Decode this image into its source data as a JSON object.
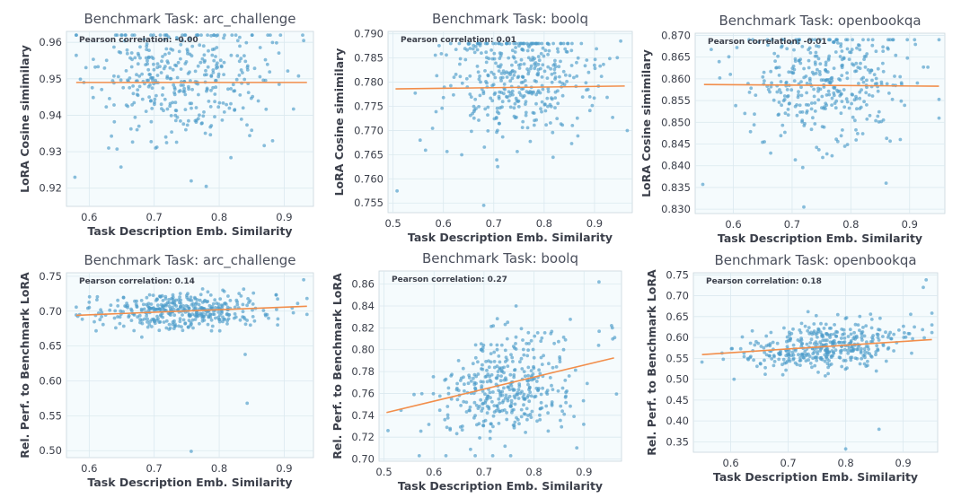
{
  "colors": {
    "point": "#4c9bc9",
    "fit_line": "#f28e4b",
    "panel_bg": "#f5fbfd",
    "grid": "#dbe9ef",
    "text": "#3b3f4a"
  },
  "chart_data": [
    {
      "type": "scatter",
      "title": "Benchmark Task: arc_challenge",
      "xlabel": "Task Description Emb. Similarity",
      "ylabel": "LoRA Cosine simimilary",
      "annotation": "Pearson correlation: -0.00",
      "xlim": [
        0.565,
        0.945
      ],
      "ylim": [
        0.915,
        0.963
      ],
      "xticks": [
        0.6,
        0.7,
        0.8,
        0.9
      ],
      "xtick_labels": [
        "0.6",
        "0.7",
        "0.8",
        "0.9"
      ],
      "yticks": [
        0.92,
        0.93,
        0.94,
        0.95,
        0.96
      ],
      "ytick_labels": [
        "0.92",
        "0.93",
        "0.94",
        "0.95",
        "0.96"
      ],
      "fit": {
        "x": [
          0.58,
          0.935
        ],
        "y": [
          0.949,
          0.949
        ]
      },
      "cloud": {
        "n": 380,
        "x_mean": 0.74,
        "x_sd": 0.065,
        "y_mean": 0.95,
        "y_sd": 0.0085,
        "seed": 11,
        "y_clip": [
          0.917,
          0.962
        ]
      },
      "points": [
        {
          "x": 0.578,
          "y": 0.923
        },
        {
          "x": 0.757,
          "y": 0.922
        },
        {
          "x": 0.78,
          "y": 0.9205
        },
        {
          "x": 0.63,
          "y": 0.931
        },
        {
          "x": 0.93,
          "y": 0.9605
        }
      ]
    },
    {
      "type": "scatter",
      "title": "Benchmark Task: boolq",
      "xlabel": "Task Description Emb. Similarity",
      "ylabel": "LoRA Cosine simimilary",
      "annotation": "Pearson correlation: 0.01",
      "xlim": [
        0.49,
        0.975
      ],
      "ylim": [
        0.753,
        0.7905
      ],
      "xticks": [
        0.5,
        0.6,
        0.7,
        0.8,
        0.9
      ],
      "xtick_labels": [
        "0.5",
        "0.6",
        "0.7",
        "0.8",
        "0.9"
      ],
      "yticks": [
        0.755,
        0.76,
        0.765,
        0.77,
        0.775,
        0.78,
        0.785,
        0.79
      ],
      "ytick_labels": [
        "0.755",
        "0.760",
        "0.765",
        "0.770",
        "0.775",
        "0.780",
        "0.785",
        "0.790"
      ],
      "fit": {
        "x": [
          0.505,
          0.96
        ],
        "y": [
          0.7786,
          0.7792
        ]
      },
      "cloud": {
        "n": 400,
        "x_mean": 0.745,
        "x_sd": 0.07,
        "y_mean": 0.7805,
        "y_sd": 0.0065,
        "seed": 23,
        "y_clip": [
          0.755,
          0.788
        ]
      },
      "points": [
        {
          "x": 0.508,
          "y": 0.7575
        },
        {
          "x": 0.952,
          "y": 0.7885
        },
        {
          "x": 0.68,
          "y": 0.7545
        },
        {
          "x": 0.6,
          "y": 0.7768
        },
        {
          "x": 0.9,
          "y": 0.7835
        }
      ]
    },
    {
      "type": "scatter",
      "title": "Benchmark Task: openbookqa",
      "xlabel": "Task Description Emb. Similarity",
      "ylabel": "LoRA Cosine simimilary",
      "annotation": "Pearson correlation: -0.01",
      "xlim": [
        0.535,
        0.96
      ],
      "ylim": [
        0.829,
        0.8705
      ],
      "xticks": [
        0.6,
        0.7,
        0.8,
        0.9
      ],
      "xtick_labels": [
        "0.6",
        "0.7",
        "0.8",
        "0.9"
      ],
      "yticks": [
        0.83,
        0.835,
        0.84,
        0.845,
        0.85,
        0.855,
        0.86,
        0.865,
        0.87
      ],
      "ytick_labels": [
        "0.830",
        "0.835",
        "0.840",
        "0.845",
        "0.850",
        "0.855",
        "0.860",
        "0.865",
        "0.870"
      ],
      "fit": {
        "x": [
          0.55,
          0.95
        ],
        "y": [
          0.8587,
          0.8583
        ]
      },
      "cloud": {
        "n": 380,
        "x_mean": 0.765,
        "x_sd": 0.07,
        "y_mean": 0.8595,
        "y_sd": 0.0072,
        "seed": 37,
        "y_clip": [
          0.831,
          0.869
        ]
      },
      "points": [
        {
          "x": 0.548,
          "y": 0.8357
        },
        {
          "x": 0.72,
          "y": 0.8305
        },
        {
          "x": 0.95,
          "y": 0.869
        },
        {
          "x": 0.86,
          "y": 0.836
        }
      ]
    },
    {
      "type": "scatter",
      "title": "Benchmark Task: arc_challenge",
      "xlabel": "Task Description Emb. Similarity",
      "ylabel": "Rel. Perf. to Benchmark LoRA",
      "annotation": "Pearson correlation: 0.14",
      "xlim": [
        0.565,
        0.945
      ],
      "ylim": [
        0.49,
        0.755
      ],
      "xticks": [
        0.6,
        0.7,
        0.8,
        0.9
      ],
      "xtick_labels": [
        "0.6",
        "0.7",
        "0.8",
        "0.9"
      ],
      "yticks": [
        0.5,
        0.55,
        0.6,
        0.65,
        0.7,
        0.75
      ],
      "ytick_labels": [
        "0.50",
        "0.55",
        "0.60",
        "0.65",
        "0.70",
        "0.75"
      ],
      "fit": {
        "x": [
          0.58,
          0.935
        ],
        "y": [
          0.694,
          0.707
        ]
      },
      "cloud": {
        "n": 400,
        "x_mean": 0.74,
        "x_sd": 0.065,
        "y_mean": 0.7,
        "y_sd": 0.013,
        "seed": 53,
        "y_clip": [
          0.64,
          0.745
        ]
      },
      "points": [
        {
          "x": 0.757,
          "y": 0.499
        },
        {
          "x": 0.843,
          "y": 0.568
        },
        {
          "x": 0.84,
          "y": 0.638
        },
        {
          "x": 0.93,
          "y": 0.745
        }
      ]
    },
    {
      "type": "scatter",
      "title": "Benchmark Task: boolq",
      "xlabel": "Task Description Emb. Similarity",
      "ylabel": "Rel. Perf. to Benchmark LoRA",
      "annotation": "Pearson correlation: 0.27",
      "xlim": [
        0.49,
        0.975
      ],
      "ylim": [
        0.698,
        0.872
      ],
      "xticks": [
        0.5,
        0.6,
        0.7,
        0.8,
        0.9
      ],
      "xtick_labels": [
        "0.5",
        "0.6",
        "0.7",
        "0.8",
        "0.9"
      ],
      "yticks": [
        0.7,
        0.72,
        0.74,
        0.76,
        0.78,
        0.8,
        0.82,
        0.84,
        0.86
      ],
      "ytick_labels": [
        "0.70",
        "0.72",
        "0.74",
        "0.76",
        "0.78",
        "0.80",
        "0.82",
        "0.84",
        "0.86"
      ],
      "fit": {
        "x": [
          0.505,
          0.96
        ],
        "y": [
          0.7425,
          0.7925
        ]
      },
      "cloud": {
        "n": 400,
        "x_mean": 0.745,
        "x_sd": 0.07,
        "y_mean": 0.768,
        "y_sd": 0.025,
        "seed": 71,
        "y_clip": [
          0.703,
          0.84
        ],
        "slope": 0.11
      },
      "points": [
        {
          "x": 0.508,
          "y": 0.726
        },
        {
          "x": 0.93,
          "y": 0.862
        },
        {
          "x": 0.955,
          "y": 0.822
        },
        {
          "x": 0.56,
          "y": 0.759
        }
      ]
    },
    {
      "type": "scatter",
      "title": "Benchmark Task: openbookqa",
      "xlabel": "Task Description Emb. Similarity",
      "ylabel": "Rel. Perf. to Benchmark LoRA",
      "annotation": "Pearson correlation: 0.18",
      "xlim": [
        0.535,
        0.96
      ],
      "ylim": [
        0.325,
        0.755
      ],
      "xticks": [
        0.6,
        0.7,
        0.8,
        0.9
      ],
      "xtick_labels": [
        "0.6",
        "0.7",
        "0.8",
        "0.9"
      ],
      "yticks": [
        0.35,
        0.4,
        0.45,
        0.5,
        0.55,
        0.6,
        0.65,
        0.7,
        0.75
      ],
      "ytick_labels": [
        "0.35",
        "0.40",
        "0.45",
        "0.50",
        "0.55",
        "0.60",
        "0.65",
        "0.70",
        "0.75"
      ],
      "fit": {
        "x": [
          0.55,
          0.95
        ],
        "y": [
          0.559,
          0.595
        ]
      },
      "cloud": {
        "n": 400,
        "x_mean": 0.765,
        "x_sd": 0.07,
        "y_mean": 0.577,
        "y_sd": 0.028,
        "seed": 97,
        "y_clip": [
          0.5,
          0.715
        ],
        "slope": 0.09
      },
      "points": [
        {
          "x": 0.8,
          "y": 0.333
        },
        {
          "x": 0.858,
          "y": 0.38
        },
        {
          "x": 0.55,
          "y": 0.541
        },
        {
          "x": 0.94,
          "y": 0.738
        },
        {
          "x": 0.935,
          "y": 0.72
        }
      ]
    }
  ]
}
